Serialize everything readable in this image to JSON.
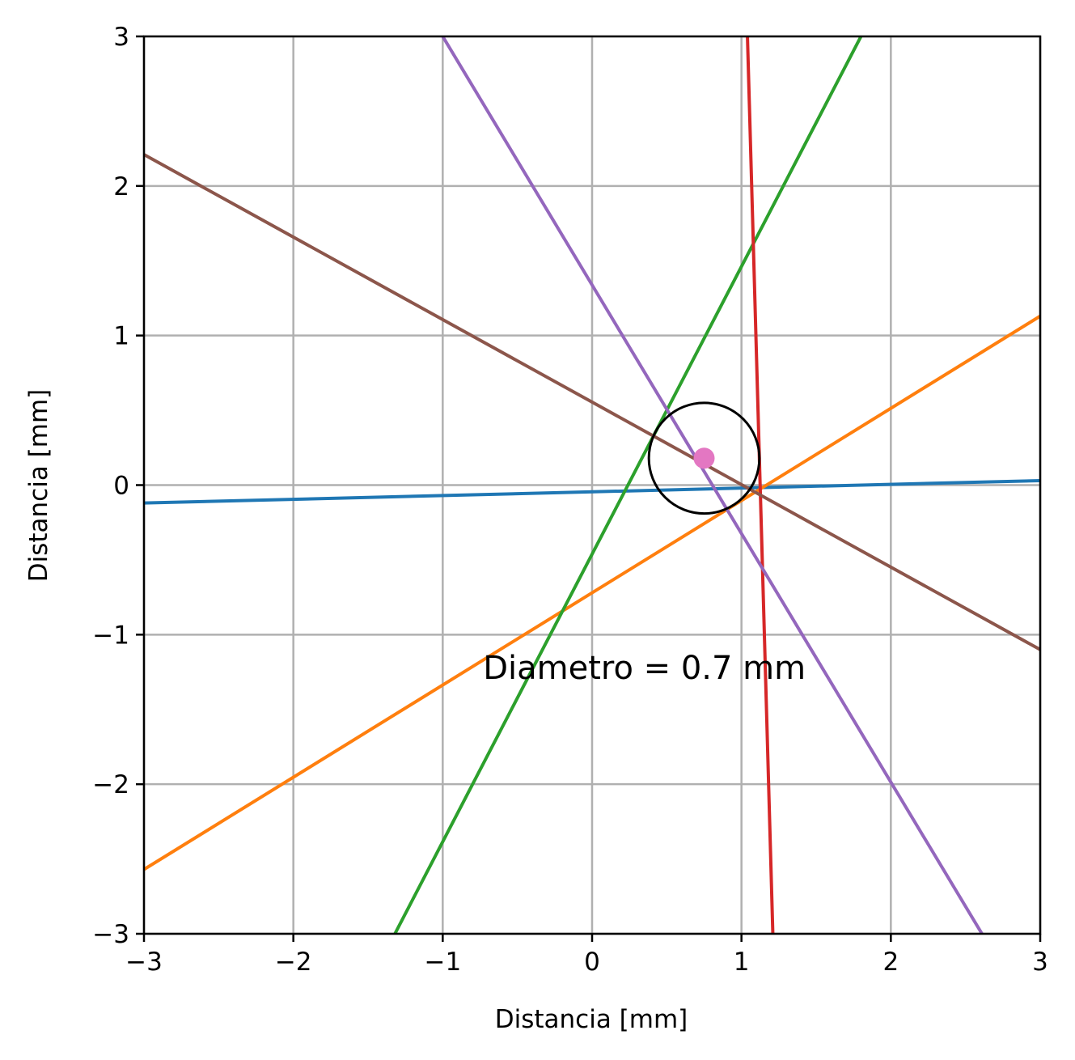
{
  "chart_data": {
    "type": "line",
    "title": "",
    "xlabel": "Distancia [mm]",
    "ylabel": "Distancia [mm]",
    "xlim": [
      -3,
      3
    ],
    "ylim": [
      -3,
      3
    ],
    "grid": true,
    "x_ticks": [
      {
        "value": -3,
        "label": "−3"
      },
      {
        "value": -2,
        "label": "−2"
      },
      {
        "value": -1,
        "label": "−1"
      },
      {
        "value": 0,
        "label": "0"
      },
      {
        "value": 1,
        "label": "1"
      },
      {
        "value": 2,
        "label": "2"
      },
      {
        "value": 3,
        "label": "3"
      }
    ],
    "y_ticks": [
      {
        "value": -3,
        "label": "−3"
      },
      {
        "value": -2,
        "label": "−2"
      },
      {
        "value": -1,
        "label": "−1"
      },
      {
        "value": 0,
        "label": "0"
      },
      {
        "value": 1,
        "label": "1"
      },
      {
        "value": 2,
        "label": "2"
      },
      {
        "value": 3,
        "label": "3"
      }
    ],
    "series": [
      {
        "color": "#1f77b4",
        "x": [
          -3,
          3
        ],
        "y": [
          -0.12,
          0.03
        ]
      },
      {
        "color": "#ff7f0e",
        "x": [
          -3,
          3
        ],
        "y": [
          -2.57,
          1.13
        ]
      },
      {
        "color": "#2ca02c",
        "x": [
          -1.32,
          1.8
        ],
        "y": [
          -3,
          3
        ]
      },
      {
        "color": "#d62728",
        "x": [
          1.04,
          1.21
        ],
        "y": [
          3,
          -3
        ]
      },
      {
        "color": "#9467bd",
        "x": [
          -1.0,
          2.61
        ],
        "y": [
          3,
          -3
        ]
      },
      {
        "color": "#8c564b",
        "x": [
          -3,
          3
        ],
        "y": [
          2.21,
          -1.1
        ]
      }
    ],
    "circle": {
      "center": [
        0.75,
        0.18
      ],
      "radius": 0.37,
      "color": "#000000"
    },
    "center_point": {
      "x": 0.75,
      "y": 0.18,
      "color": "#e377c2"
    },
    "annotation": {
      "text": "Diametro = 0.7 mm",
      "x": -0.73,
      "y": -1.22
    }
  }
}
